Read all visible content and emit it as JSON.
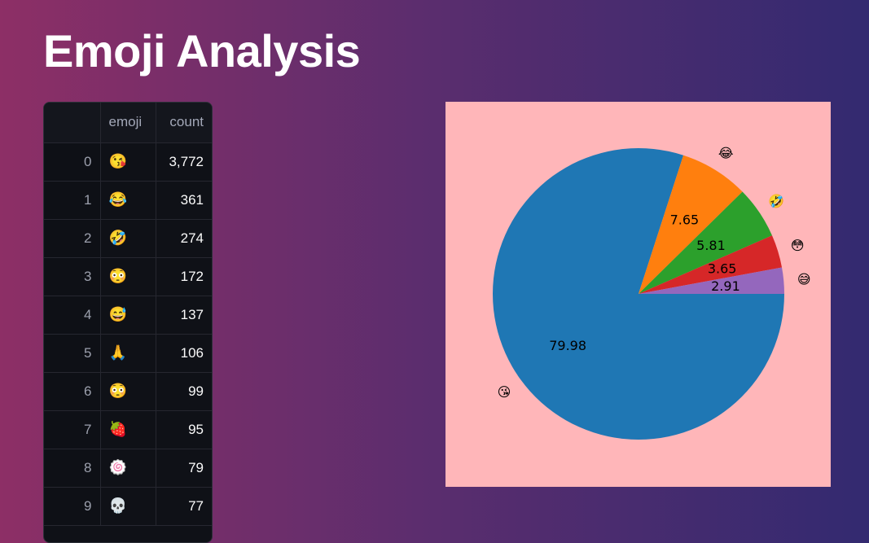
{
  "title": "Emoji Analysis",
  "table": {
    "columns": [
      "",
      "emoji",
      "count"
    ],
    "rows": [
      {
        "index": "0",
        "emoji": "😘",
        "count": "3,772"
      },
      {
        "index": "1",
        "emoji": "😂",
        "count": "361"
      },
      {
        "index": "2",
        "emoji": "🤣",
        "count": "274"
      },
      {
        "index": "3",
        "emoji": "😳",
        "count": "172"
      },
      {
        "index": "4",
        "emoji": "😅",
        "count": "137"
      },
      {
        "index": "5",
        "emoji": "🙏",
        "count": "106"
      },
      {
        "index": "6",
        "emoji": "😳",
        "count": "99"
      },
      {
        "index": "7",
        "emoji": "🍓",
        "count": "95"
      },
      {
        "index": "8",
        "emoji": "🍥",
        "count": "79"
      },
      {
        "index": "9",
        "emoji": "💀",
        "count": "77"
      }
    ]
  },
  "colors": {
    "chart_background": "#ffb6b9",
    "slices": [
      "#1f77b4",
      "#ff7f0e",
      "#2ca02c",
      "#d62728",
      "#9467bd"
    ]
  },
  "chart_data": {
    "type": "pie",
    "labels": [
      "😘",
      "😂",
      "🤣",
      "😳",
      "😅"
    ],
    "values": [
      79.98,
      7.65,
      5.81,
      3.65,
      2.91
    ],
    "value_labels": [
      "79.98",
      "7.65",
      "5.81",
      "3.65",
      "2.91"
    ],
    "start_angle_deg": 0,
    "direction": "clockwise",
    "title": ""
  }
}
